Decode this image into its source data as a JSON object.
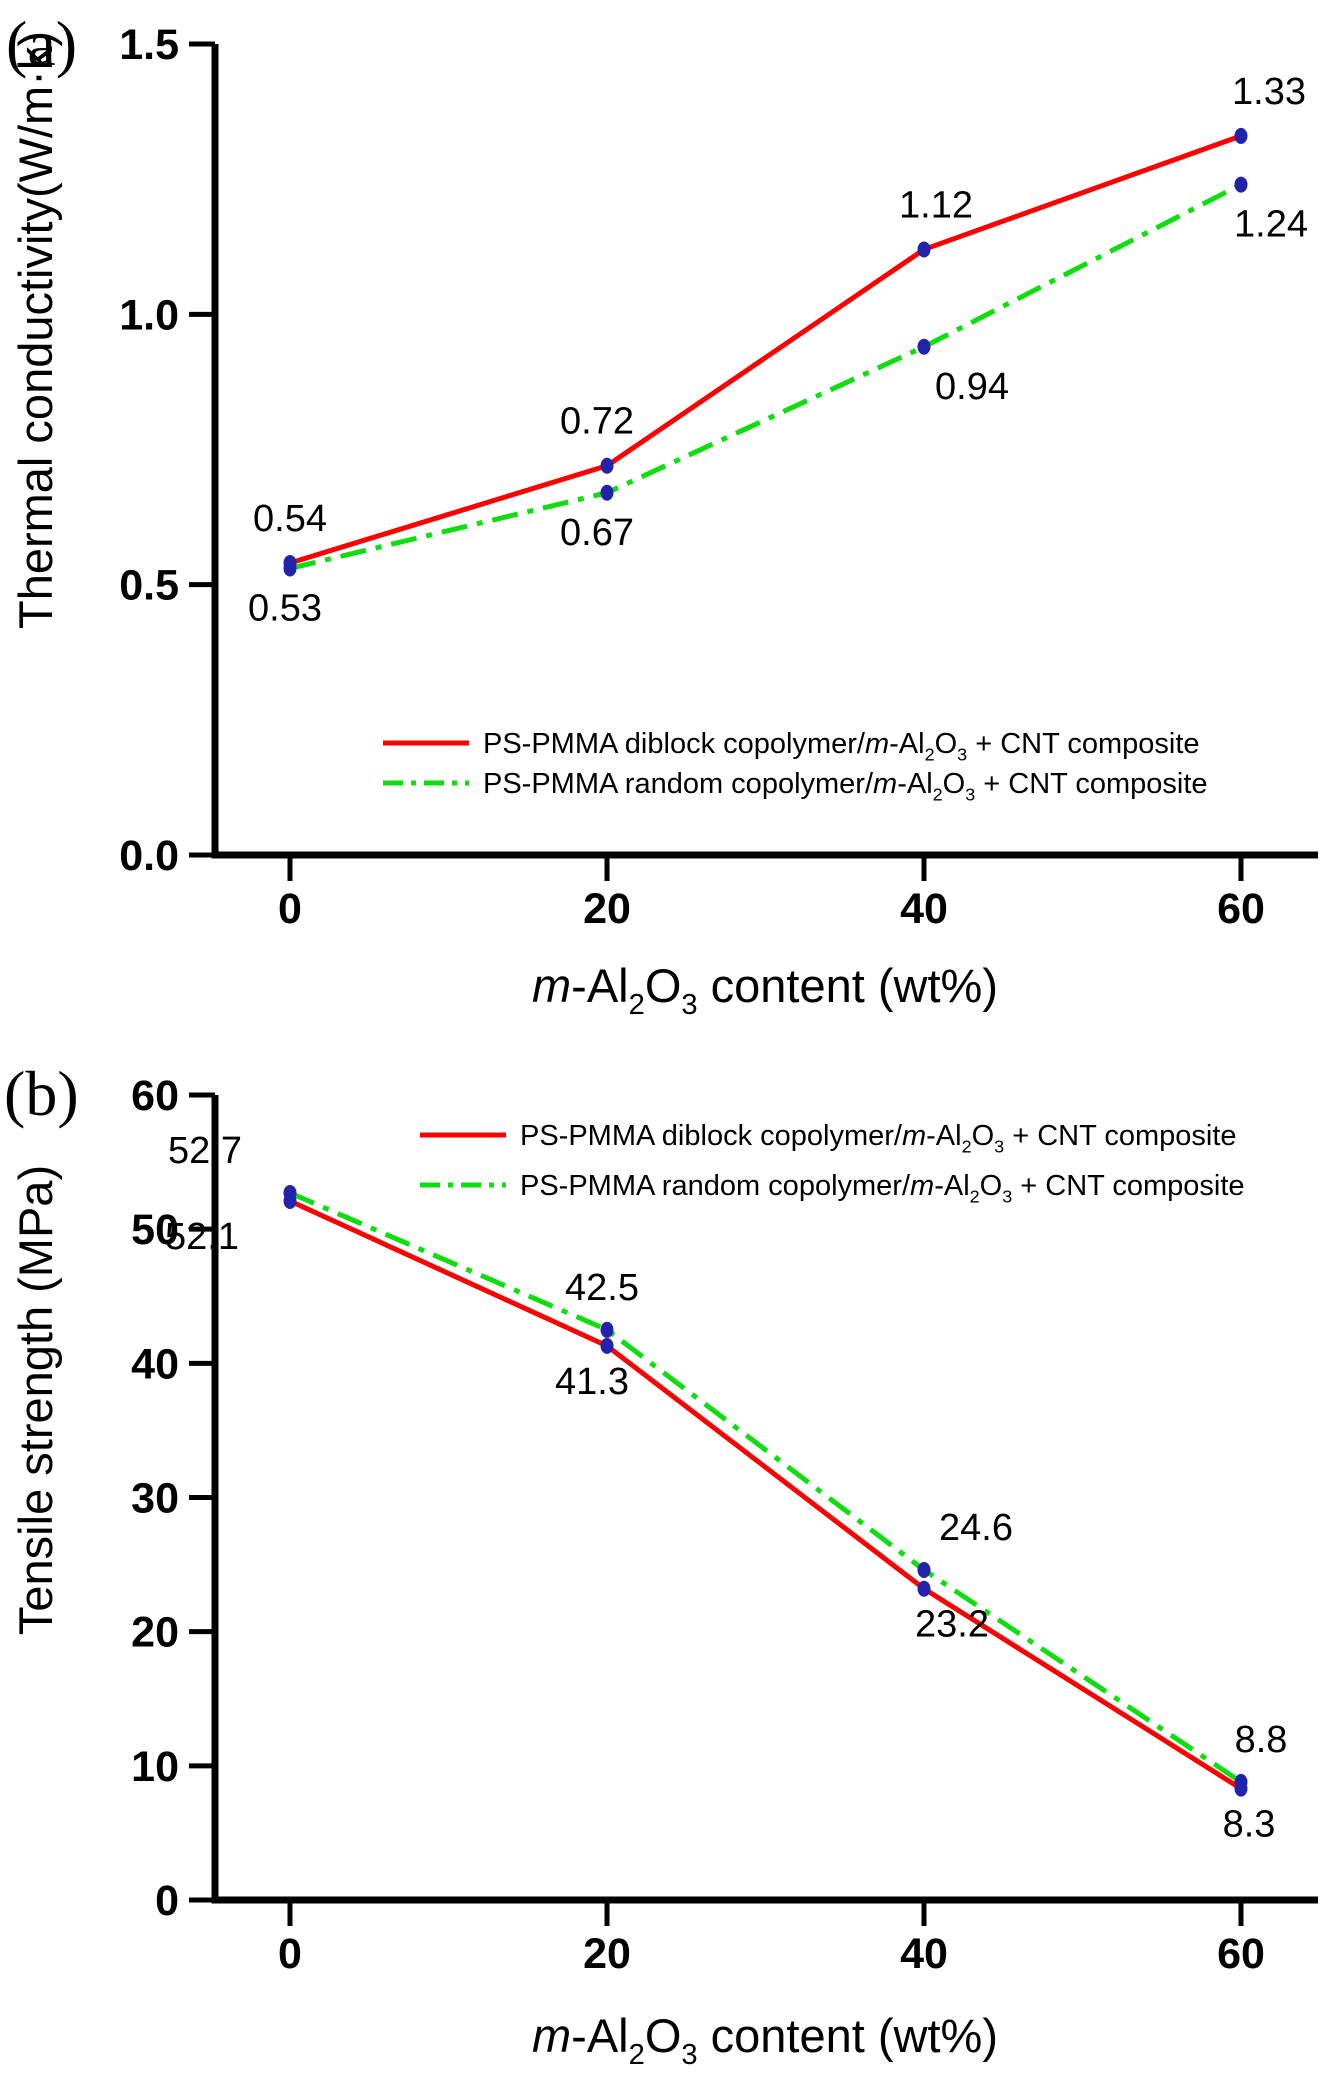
{
  "figure": {
    "background": "#ffffff"
  },
  "chart_data": [
    {
      "panel": "a",
      "tag": "(a)",
      "type": "line",
      "x": [
        0,
        20,
        40,
        60
      ],
      "xlim": [
        0,
        60
      ],
      "xtick_labels": [
        "0",
        "20",
        "40",
        "60"
      ],
      "ytick_values": [
        0,
        0.5,
        1.0,
        1.5
      ],
      "ytick_labels": [
        "0.0",
        "0.5",
        "1.0",
        "1.5"
      ],
      "ylim": [
        0,
        1.5
      ],
      "xlabel": "*m*-Al_2_O_3_ content (wt%)",
      "ylabel": "Thermal conductivity(W/m·k)",
      "grid": false,
      "legend_position": "inside-bottom-center",
      "marker_color": "#2222aa",
      "series": [
        {
          "name": "diblock",
          "label": "PS-PMMA diblock copolymer/*m*-Al_2_O_3_  + CNT composite",
          "color": "#fe0000",
          "dash": null,
          "values": [
            0.54,
            0.72,
            1.12,
            1.33
          ],
          "point_labels": [
            "0.54",
            "0.72",
            "1.12",
            "1.33"
          ],
          "label_side": "above",
          "label_dy": -32,
          "label_dx": [
            0,
            -10,
            12,
            28
          ]
        },
        {
          "name": "random",
          "label": "PS-PMMA random copolymer/*m*-Al_2_O_3_ + CNT composite",
          "color": "#0edd0e",
          "dash": "26 10 6 10",
          "values": [
            0.53,
            0.67,
            0.94,
            1.24
          ],
          "point_labels": [
            "0.53",
            "0.67",
            "0.94",
            "1.24"
          ],
          "label_side": "below",
          "label_dy": 52,
          "label_dx": [
            -5,
            -10,
            48,
            30
          ]
        }
      ]
    },
    {
      "panel": "b",
      "tag": "(b)",
      "type": "line",
      "x": [
        0,
        20,
        40,
        60
      ],
      "xlim": [
        0,
        60
      ],
      "xtick_labels": [
        "0",
        "20",
        "40",
        "60"
      ],
      "ytick_values": [
        0,
        10,
        20,
        30,
        40,
        50,
        60
      ],
      "ytick_labels": [
        "0",
        "10",
        "20",
        "30",
        "40",
        "50",
        "60"
      ],
      "ylim": [
        0,
        60
      ],
      "xlabel": "*m*-Al_2_O_3_ content (wt%)",
      "ylabel": "Tensile strength (MPa)",
      "grid": false,
      "legend_position": "inside-top-right",
      "marker_color": "#2222aa",
      "series": [
        {
          "name": "diblock",
          "label": "PS-PMMA diblock copolymer/*m*-Al_2_O_3_  + CNT composite",
          "color": "#fe0000",
          "dash": null,
          "values": [
            52.1,
            41.3,
            23.2,
            8.3
          ],
          "point_labels": [
            "52.1",
            "41.3",
            "23.2",
            "8.3"
          ],
          "label_side": "below",
          "label_dy": 48,
          "label_dx": [
            -88,
            -15,
            28,
            8
          ]
        },
        {
          "name": "random",
          "label": "PS-PMMA random copolymer/*m*-Al_2_O_3_ + CNT composite",
          "color": "#0edd0e",
          "dash": "26 10 6 10",
          "values": [
            52.7,
            42.5,
            24.6,
            8.8
          ],
          "point_labels": [
            "52.7",
            "42.5",
            "24.6",
            "8.8"
          ],
          "label_side": "above",
          "label_dy": -30,
          "label_dx": [
            -85,
            -5,
            52,
            20
          ]
        }
      ]
    }
  ]
}
